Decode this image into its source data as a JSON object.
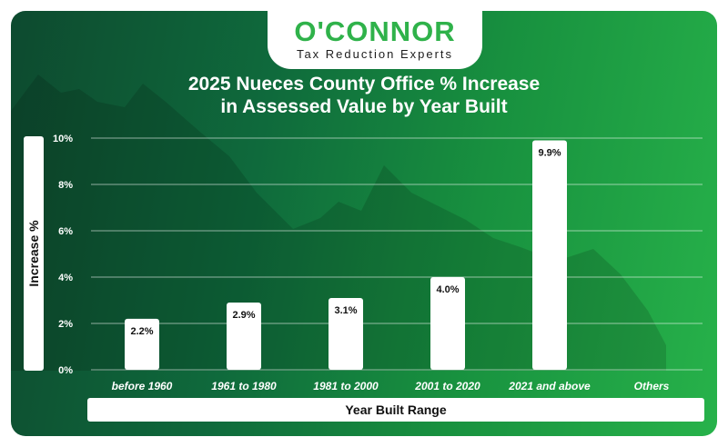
{
  "brand": {
    "name": "O'CONNOR",
    "tagline": "Tax Reduction Experts"
  },
  "colors": {
    "accent": "#2fb24a",
    "bar": "#ffffff",
    "text": "#ffffff"
  },
  "chart_data": {
    "type": "bar",
    "title_line1": "2025 Nueces County Office % Increase",
    "title_line2": "in Assessed Value by Year Built",
    "xlabel": "Year Built Range",
    "ylabel": "Increase %",
    "categories": [
      "before 1960",
      "1961 to 1980",
      "1981 to 2000",
      "2001 to 2020",
      "2021 and above",
      "Others"
    ],
    "values": [
      2.2,
      2.9,
      3.1,
      4.0,
      9.9,
      null
    ],
    "value_labels": [
      "2.2%",
      "2.9%",
      "3.1%",
      "4.0%",
      "9.9%",
      ""
    ],
    "yticks": [
      0,
      2,
      4,
      6,
      8,
      10
    ],
    "ytick_labels": [
      "0%",
      "2%",
      "4%",
      "6%",
      "8%",
      "10%"
    ],
    "ylim": [
      0,
      10
    ],
    "grid": true
  }
}
